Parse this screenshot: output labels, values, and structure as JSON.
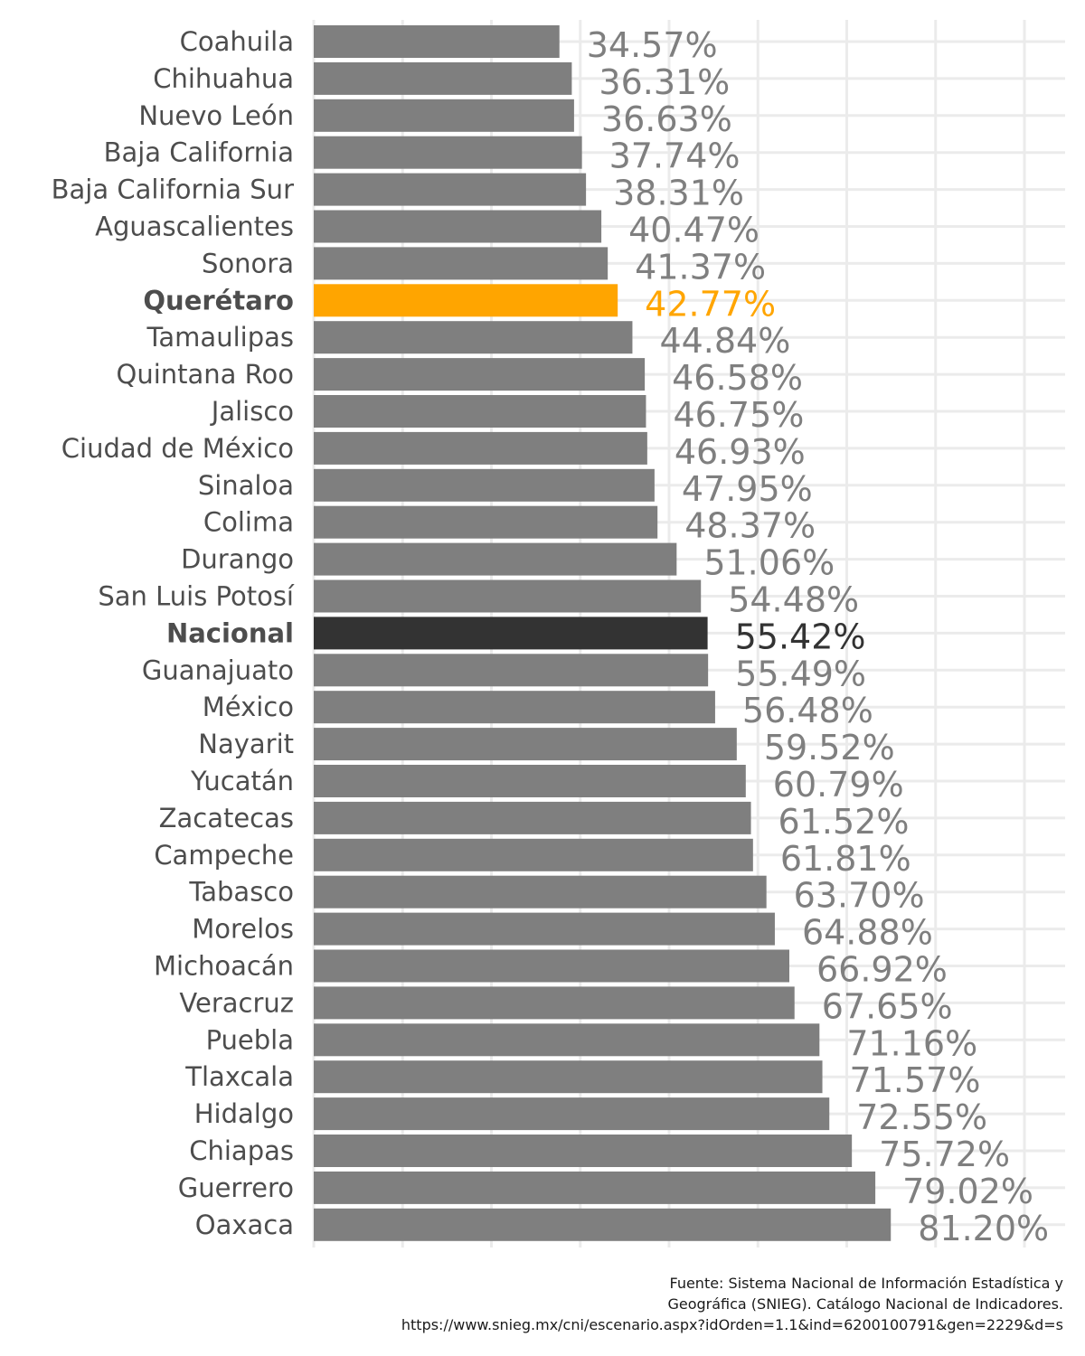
{
  "chart_data": {
    "type": "bar",
    "orientation": "horizontal",
    "categories": [
      "Coahuila",
      "Chihuahua",
      "Nuevo León",
      "Baja California",
      "Baja California Sur",
      "Aguascalientes",
      "Sonora",
      "Querétaro",
      "Tamaulipas",
      "Quintana Roo",
      "Jalisco",
      "Ciudad de México",
      "Sinaloa",
      "Colima",
      "Durango",
      "San Luis Potosí",
      "Nacional",
      "Guanajuato",
      "México",
      "Nayarit",
      "Yucatán",
      "Zacatecas",
      "Campeche",
      "Tabasco",
      "Morelos",
      "Michoacán",
      "Veracruz",
      "Puebla",
      "Tlaxcala",
      "Hidalgo",
      "Chiapas",
      "Guerrero",
      "Oaxaca"
    ],
    "values": [
      34.57,
      36.31,
      36.63,
      37.74,
      38.31,
      40.47,
      41.37,
      42.77,
      44.84,
      46.58,
      46.75,
      46.93,
      47.95,
      48.37,
      51.06,
      54.48,
      55.42,
      55.49,
      56.48,
      59.52,
      60.79,
      61.52,
      61.81,
      63.7,
      64.88,
      66.92,
      67.65,
      71.16,
      71.57,
      72.55,
      75.72,
      79.02,
      81.2
    ],
    "value_labels": [
      "34.57%",
      "36.31%",
      "36.63%",
      "37.74%",
      "38.31%",
      "40.47%",
      "41.37%",
      "42.77%",
      "44.84%",
      "46.58%",
      "46.75%",
      "46.93%",
      "47.95%",
      "48.37%",
      "51.06%",
      "54.48%",
      "55.42%",
      "55.49%",
      "56.48%",
      "59.52%",
      "60.79%",
      "61.52%",
      "61.81%",
      "63.70%",
      "64.88%",
      "66.92%",
      "67.65%",
      "71.16%",
      "71.57%",
      "72.55%",
      "75.72%",
      "79.02%",
      "81.20%"
    ],
    "highlights": {
      "Querétaro": "#ffa500",
      "Nacional": "#333333"
    },
    "default_bar_color": "#7f7f7f",
    "default_label_color": "#7f7f7f",
    "xlim": [
      0,
      105
    ],
    "x_gridlines": [
      0,
      12.5,
      25,
      37.5,
      50,
      62.5,
      75,
      87.5,
      100
    ],
    "xlabel": "",
    "ylabel": "",
    "title": "",
    "grid": true,
    "legend": "none"
  },
  "caption": {
    "line1": "Fuente: Sistema Nacional de Información Estadística y",
    "line2": "Geográfica (SNIEG). Catálogo Nacional de Indicadores.",
    "line3": "https://www.snieg.mx/cni/escenario.aspx?idOrden=1.1&ind=6200100791&gen=2229&d=s"
  }
}
